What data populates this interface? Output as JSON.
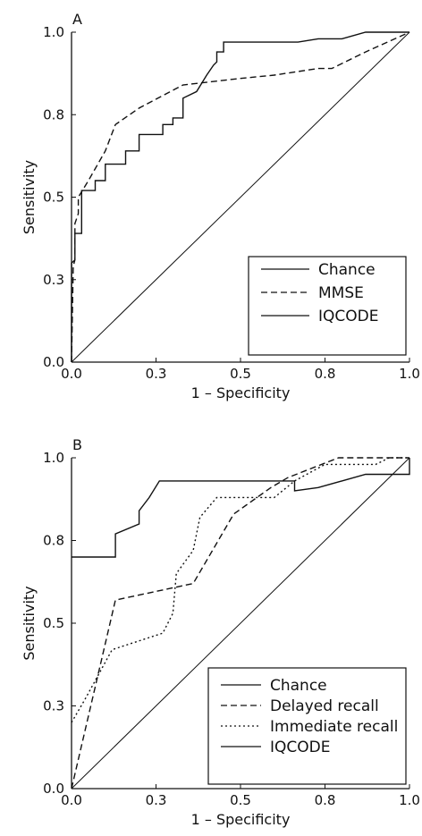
{
  "chart_data": [
    {
      "type": "line",
      "panel_label": "A",
      "xlabel": "1 – Specificity",
      "ylabel": "Sensitivity",
      "xlim": [
        0,
        1
      ],
      "ylim": [
        0,
        1
      ],
      "xticks": [
        "0.0",
        "0.3",
        "0.5",
        "0.8",
        "1.0"
      ],
      "yticks": [
        "0.0",
        "0.3",
        "0.5",
        "0.8",
        "1.0"
      ],
      "legend_position": "bottom-right",
      "series": [
        {
          "name": "Chance",
          "style": "solid",
          "x": [
            0,
            1
          ],
          "y": [
            0,
            1
          ]
        },
        {
          "name": "MMSE",
          "style": "dashed",
          "x": [
            0,
            0.005,
            0.01,
            0.01,
            0.02,
            0.02,
            0.05,
            0.1,
            0.13,
            0.2,
            0.33,
            0.5,
            0.6,
            0.73,
            0.77,
            0.87,
            1.0
          ],
          "y": [
            0,
            0.29,
            0.31,
            0.42,
            0.45,
            0.5,
            0.55,
            0.64,
            0.72,
            0.77,
            0.84,
            0.86,
            0.87,
            0.89,
            0.89,
            0.94,
            1.0
          ]
        },
        {
          "name": "IQCODE",
          "style": "solid",
          "x": [
            0,
            0,
            0.01,
            0.01,
            0.03,
            0.03,
            0.07,
            0.07,
            0.1,
            0.1,
            0.16,
            0.16,
            0.2,
            0.2,
            0.27,
            0.27,
            0.3,
            0.3,
            0.33,
            0.33,
            0.37,
            0.4,
            0.42,
            0.43,
            0.43,
            0.45,
            0.45,
            0.67,
            0.73,
            0.8,
            0.87,
            1.0
          ],
          "y": [
            0,
            0.3,
            0.31,
            0.39,
            0.39,
            0.52,
            0.52,
            0.55,
            0.55,
            0.6,
            0.6,
            0.64,
            0.64,
            0.69,
            0.69,
            0.72,
            0.72,
            0.74,
            0.74,
            0.8,
            0.82,
            0.87,
            0.9,
            0.91,
            0.94,
            0.94,
            0.97,
            0.97,
            0.98,
            0.98,
            1.0,
            1.0
          ]
        }
      ]
    },
    {
      "type": "line",
      "panel_label": "B",
      "xlabel": "1 – Specificity",
      "ylabel": "Sensitivity",
      "xlim": [
        0,
        1
      ],
      "ylim": [
        0,
        1
      ],
      "xticks": [
        "0.0",
        "0.3",
        "0.5",
        "0.8",
        "1.0"
      ],
      "yticks": [
        "0.0",
        "0.3",
        "0.5",
        "0.8",
        "1.0"
      ],
      "legend_position": "bottom-right",
      "series": [
        {
          "name": "Chance",
          "style": "solid",
          "x": [
            0,
            1
          ],
          "y": [
            0,
            1
          ]
        },
        {
          "name": "Delayed recall",
          "style": "dashed",
          "x": [
            0,
            0.13,
            0.36,
            0.48,
            0.59,
            0.64,
            0.79,
            0.9,
            1.0
          ],
          "y": [
            0,
            0.57,
            0.62,
            0.83,
            0.91,
            0.94,
            1.0,
            1.0,
            1.0
          ]
        },
        {
          "name": "Immediate recall",
          "style": "dotted",
          "x": [
            0,
            0.04,
            0.12,
            0.27,
            0.3,
            0.31,
            0.36,
            0.38,
            0.43,
            0.6,
            0.66,
            0.75,
            0.9,
            0.94,
            1.0
          ],
          "y": [
            0.2,
            0.27,
            0.42,
            0.47,
            0.53,
            0.65,
            0.72,
            0.82,
            0.88,
            0.88,
            0.93,
            0.98,
            0.98,
            1.0,
            1.0
          ]
        },
        {
          "name": "IQCODE",
          "style": "solid",
          "x": [
            0,
            0.13,
            0.13,
            0.2,
            0.2,
            0.23,
            0.26,
            0.66,
            0.66,
            0.73,
            0.8,
            0.87,
            1.0,
            1.0
          ],
          "y": [
            0.7,
            0.7,
            0.77,
            0.8,
            0.84,
            0.88,
            0.93,
            0.93,
            0.9,
            0.91,
            0.93,
            0.95,
            0.95,
            1.0
          ]
        }
      ]
    }
  ]
}
